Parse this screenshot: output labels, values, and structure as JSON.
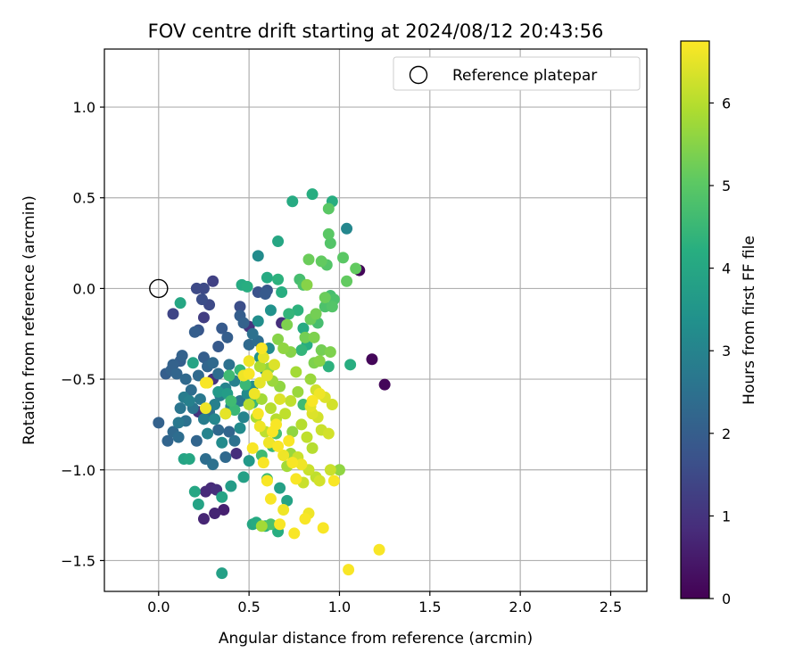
{
  "chart_data": {
    "type": "scatter",
    "title": "FOV centre drift starting at 2024/08/12 20:43:56",
    "xlabel": "Angular distance from reference (arcmin)",
    "ylabel": "Rotation from reference (arcmin)",
    "xlim": [
      -0.3,
      2.7
    ],
    "ylim": [
      -1.67,
      1.32
    ],
    "xticks": [
      0.0,
      0.5,
      1.0,
      1.5,
      2.0,
      2.5
    ],
    "xtick_labels": [
      "0.0",
      "0.5",
      "1.0",
      "1.5",
      "2.0",
      "2.5"
    ],
    "yticks": [
      -1.5,
      -1.0,
      -0.5,
      0.0,
      0.5,
      1.0
    ],
    "ytick_labels": [
      "−1.5",
      "−1.0",
      "−0.5",
      "0.0",
      "0.5",
      "1.0"
    ],
    "grid": true,
    "colormap": "viridis",
    "colorbar": {
      "label": "Hours from first FF file",
      "range": [
        0,
        6.75
      ],
      "ticks": [
        0,
        1,
        2,
        3,
        4,
        5,
        6
      ],
      "tick_labels": [
        "0",
        "1",
        "2",
        "3",
        "4",
        "5",
        "6"
      ]
    },
    "legend": {
      "position": "top-right",
      "entries": [
        "Reference platepar"
      ]
    },
    "reference_point": {
      "x": 0.0,
      "y": 0.0
    },
    "points": [
      {
        "x": 1.25,
        "y": -0.53,
        "h": 0.1
      },
      {
        "x": 1.18,
        "y": -0.39,
        "h": 0.1
      },
      {
        "x": 1.11,
        "y": 0.1,
        "h": 0.1
      },
      {
        "x": 0.36,
        "y": -1.22,
        "h": 0.6
      },
      {
        "x": 0.25,
        "y": -1.27,
        "h": 0.7
      },
      {
        "x": 0.31,
        "y": -1.24,
        "h": 0.7
      },
      {
        "x": 0.26,
        "y": -1.12,
        "h": 0.8
      },
      {
        "x": 0.29,
        "y": -1.1,
        "h": 0.8
      },
      {
        "x": 0.32,
        "y": -1.11,
        "h": 0.9
      },
      {
        "x": 0.43,
        "y": -0.91,
        "h": 0.9
      },
      {
        "x": 0.22,
        "y": -0.68,
        "h": 1.0
      },
      {
        "x": 0.3,
        "y": -0.5,
        "h": 1.0
      },
      {
        "x": 0.68,
        "y": -0.19,
        "h": 0.9
      },
      {
        "x": 0.5,
        "y": -0.21,
        "h": 1.0
      },
      {
        "x": 0.25,
        "y": -0.16,
        "h": 1.2
      },
      {
        "x": 0.3,
        "y": 0.04,
        "h": 1.3
      },
      {
        "x": 0.08,
        "y": -0.14,
        "h": 1.4
      },
      {
        "x": 0.21,
        "y": 0.0,
        "h": 1.5
      },
      {
        "x": 0.25,
        "y": 0.0,
        "h": 1.5
      },
      {
        "x": 0.24,
        "y": -0.06,
        "h": 1.6
      },
      {
        "x": 0.28,
        "y": -0.09,
        "h": 1.5
      },
      {
        "x": 0.45,
        "y": -0.1,
        "h": 1.6
      },
      {
        "x": 0.55,
        "y": -0.02,
        "h": 1.7
      },
      {
        "x": 0.6,
        "y": -0.01,
        "h": 1.8
      },
      {
        "x": 0.59,
        "y": -0.03,
        "h": 1.9
      },
      {
        "x": 0.22,
        "y": -0.23,
        "h": 1.8
      },
      {
        "x": 0.35,
        "y": -0.22,
        "h": 1.9
      },
      {
        "x": 0.38,
        "y": -0.27,
        "h": 2.0
      },
      {
        "x": 0.45,
        "y": -0.15,
        "h": 2.0
      },
      {
        "x": 0.47,
        "y": -0.19,
        "h": 2.1
      },
      {
        "x": 0.33,
        "y": -0.32,
        "h": 1.9
      },
      {
        "x": 0.2,
        "y": -0.24,
        "h": 2.0
      },
      {
        "x": 0.25,
        "y": -0.38,
        "h": 2.0
      },
      {
        "x": 0.13,
        "y": -0.37,
        "h": 2.1
      },
      {
        "x": 0.12,
        "y": -0.4,
        "h": 2.0
      },
      {
        "x": 0.08,
        "y": -0.42,
        "h": 2.1
      },
      {
        "x": 0.04,
        "y": -0.47,
        "h": 2.0
      },
      {
        "x": 0.07,
        "y": -0.45,
        "h": 2.1
      },
      {
        "x": 0.1,
        "y": -0.47,
        "h": 2.2
      },
      {
        "x": 0.15,
        "y": -0.5,
        "h": 2.3
      },
      {
        "x": 0.27,
        "y": -0.43,
        "h": 2.2
      },
      {
        "x": 0.3,
        "y": -0.41,
        "h": 2.3
      },
      {
        "x": 0.18,
        "y": -0.56,
        "h": 2.4
      },
      {
        "x": 0.22,
        "y": -0.48,
        "h": 2.3
      },
      {
        "x": 0.33,
        "y": -0.47,
        "h": 2.4
      },
      {
        "x": 0.39,
        "y": -0.42,
        "h": 2.5
      },
      {
        "x": 0.5,
        "y": -0.31,
        "h": 2.3
      },
      {
        "x": 0.55,
        "y": -0.29,
        "h": 2.4
      },
      {
        "x": 0.52,
        "y": -0.25,
        "h": 2.5
      },
      {
        "x": 0.0,
        "y": -0.74,
        "h": 2.1
      },
      {
        "x": 0.05,
        "y": -0.84,
        "h": 2.2
      },
      {
        "x": 0.08,
        "y": -0.79,
        "h": 2.3
      },
      {
        "x": 0.11,
        "y": -0.82,
        "h": 2.4
      },
      {
        "x": 0.21,
        "y": -0.84,
        "h": 2.2
      },
      {
        "x": 0.26,
        "y": -0.94,
        "h": 2.4
      },
      {
        "x": 0.3,
        "y": -0.97,
        "h": 2.5
      },
      {
        "x": 0.37,
        "y": -0.93,
        "h": 2.3
      },
      {
        "x": 0.42,
        "y": -0.84,
        "h": 2.5
      },
      {
        "x": 0.39,
        "y": -0.79,
        "h": 2.2
      },
      {
        "x": 0.33,
        "y": -0.78,
        "h": 2.3
      },
      {
        "x": 0.28,
        "y": -0.68,
        "h": 2.4
      },
      {
        "x": 0.12,
        "y": -0.66,
        "h": 2.6
      },
      {
        "x": 0.11,
        "y": -0.74,
        "h": 2.7
      },
      {
        "x": 0.15,
        "y": -0.73,
        "h": 2.5
      },
      {
        "x": 0.14,
        "y": -0.6,
        "h": 2.8
      },
      {
        "x": 0.17,
        "y": -0.62,
        "h": 2.9
      },
      {
        "x": 0.19,
        "y": -0.66,
        "h": 2.6
      },
      {
        "x": 0.23,
        "y": -0.61,
        "h": 2.7
      },
      {
        "x": 0.25,
        "y": -0.72,
        "h": 2.8
      },
      {
        "x": 0.31,
        "y": -0.64,
        "h": 2.9
      },
      {
        "x": 0.34,
        "y": -0.59,
        "h": 2.8
      },
      {
        "x": 0.37,
        "y": -0.55,
        "h": 3.0
      },
      {
        "x": 0.42,
        "y": -0.51,
        "h": 2.9
      },
      {
        "x": 0.45,
        "y": -0.62,
        "h": 2.7
      },
      {
        "x": 0.47,
        "y": -0.71,
        "h": 3.0
      },
      {
        "x": 0.4,
        "y": -0.65,
        "h": 3.1
      },
      {
        "x": 0.31,
        "y": -0.72,
        "h": 3.1
      },
      {
        "x": 0.27,
        "y": -0.8,
        "h": 3.0
      },
      {
        "x": 0.35,
        "y": -0.85,
        "h": 3.2
      },
      {
        "x": 0.45,
        "y": -0.77,
        "h": 3.2
      },
      {
        "x": 0.49,
        "y": -0.58,
        "h": 3.2
      },
      {
        "x": 0.52,
        "y": -0.54,
        "h": 3.3
      },
      {
        "x": 0.55,
        "y": -0.18,
        "h": 3.3
      },
      {
        "x": 0.62,
        "y": -0.12,
        "h": 3.4
      },
      {
        "x": 0.61,
        "y": -0.33,
        "h": 3.2
      },
      {
        "x": 0.56,
        "y": -0.38,
        "h": 3.4
      },
      {
        "x": 0.59,
        "y": -0.45,
        "h": 3.3
      },
      {
        "x": 0.55,
        "y": 0.18,
        "h": 3.2
      },
      {
        "x": 1.04,
        "y": 0.33,
        "h": 3.1
      },
      {
        "x": 0.33,
        "y": -0.57,
        "h": 3.6
      },
      {
        "x": 0.38,
        "y": -0.58,
        "h": 3.7
      },
      {
        "x": 0.35,
        "y": -1.57,
        "h": 3.8
      },
      {
        "x": 0.4,
        "y": -1.09,
        "h": 3.7
      },
      {
        "x": 0.47,
        "y": -1.04,
        "h": 3.8
      },
      {
        "x": 0.35,
        "y": -1.15,
        "h": 3.9
      },
      {
        "x": 0.22,
        "y": -1.19,
        "h": 3.9
      },
      {
        "x": 0.2,
        "y": -1.12,
        "h": 4.0
      },
      {
        "x": 0.14,
        "y": -0.94,
        "h": 3.9
      },
      {
        "x": 0.17,
        "y": -0.94,
        "h": 4.0
      },
      {
        "x": 0.5,
        "y": -0.95,
        "h": 3.6
      },
      {
        "x": 0.52,
        "y": -1.3,
        "h": 4.0
      },
      {
        "x": 0.54,
        "y": -1.29,
        "h": 4.1
      },
      {
        "x": 0.67,
        "y": -1.1,
        "h": 3.8
      },
      {
        "x": 0.71,
        "y": -1.17,
        "h": 3.9
      },
      {
        "x": 0.66,
        "y": -1.34,
        "h": 4.2
      },
      {
        "x": 0.59,
        "y": -1.31,
        "h": 4.3
      },
      {
        "x": 0.12,
        "y": -0.08,
        "h": 4.0
      },
      {
        "x": 0.19,
        "y": -0.41,
        "h": 3.9
      },
      {
        "x": 0.46,
        "y": 0.02,
        "h": 4.1
      },
      {
        "x": 0.49,
        "y": 0.01,
        "h": 4.2
      },
      {
        "x": 0.6,
        "y": 0.06,
        "h": 4.1
      },
      {
        "x": 0.66,
        "y": 0.26,
        "h": 4.0
      },
      {
        "x": 0.74,
        "y": 0.48,
        "h": 4.1
      },
      {
        "x": 0.85,
        "y": 0.52,
        "h": 4.2
      },
      {
        "x": 0.96,
        "y": 0.48,
        "h": 4.2
      },
      {
        "x": 0.66,
        "y": 0.05,
        "h": 4.3
      },
      {
        "x": 0.68,
        "y": -0.02,
        "h": 4.2
      },
      {
        "x": 0.72,
        "y": -0.14,
        "h": 4.4
      },
      {
        "x": 0.77,
        "y": -0.12,
        "h": 4.3
      },
      {
        "x": 0.8,
        "y": -0.22,
        "h": 4.1
      },
      {
        "x": 0.82,
        "y": -0.31,
        "h": 4.2
      },
      {
        "x": 0.79,
        "y": -0.34,
        "h": 4.4
      },
      {
        "x": 1.06,
        "y": -0.42,
        "h": 4.2
      },
      {
        "x": 0.94,
        "y": -0.43,
        "h": 4.3
      },
      {
        "x": 0.45,
        "y": -0.45,
        "h": 4.4
      },
      {
        "x": 0.48,
        "y": -0.53,
        "h": 4.5
      },
      {
        "x": 0.52,
        "y": -0.63,
        "h": 4.5
      },
      {
        "x": 0.39,
        "y": -0.48,
        "h": 4.6
      },
      {
        "x": 0.4,
        "y": -0.62,
        "h": 4.6
      },
      {
        "x": 0.42,
        "y": -0.67,
        "h": 4.5
      },
      {
        "x": 0.37,
        "y": -0.69,
        "h": 4.4
      },
      {
        "x": 0.63,
        "y": -0.87,
        "h": 4.5
      },
      {
        "x": 0.6,
        "y": -1.05,
        "h": 4.6
      },
      {
        "x": 0.57,
        "y": -0.92,
        "h": 4.6
      },
      {
        "x": 0.65,
        "y": -0.8,
        "h": 4.7
      },
      {
        "x": 0.8,
        "y": -0.64,
        "h": 4.6
      },
      {
        "x": 0.62,
        "y": -1.3,
        "h": 4.8
      },
      {
        "x": 0.78,
        "y": 0.05,
        "h": 4.7
      },
      {
        "x": 0.8,
        "y": 0.02,
        "h": 4.8
      },
      {
        "x": 0.88,
        "y": -0.19,
        "h": 4.7
      },
      {
        "x": 0.92,
        "y": -0.1,
        "h": 4.8
      },
      {
        "x": 0.95,
        "y": -0.04,
        "h": 4.7
      },
      {
        "x": 0.96,
        "y": -0.1,
        "h": 4.9
      },
      {
        "x": 0.97,
        "y": -0.06,
        "h": 4.8
      },
      {
        "x": 0.93,
        "y": 0.13,
        "h": 4.9
      },
      {
        "x": 0.95,
        "y": 0.25,
        "h": 4.9
      },
      {
        "x": 0.94,
        "y": 0.3,
        "h": 5.0
      },
      {
        "x": 0.94,
        "y": 0.44,
        "h": 5.0
      },
      {
        "x": 1.02,
        "y": 0.17,
        "h": 5.0
      },
      {
        "x": 1.09,
        "y": 0.11,
        "h": 5.1
      },
      {
        "x": 1.04,
        "y": 0.04,
        "h": 5.1
      },
      {
        "x": 0.9,
        "y": 0.15,
        "h": 5.1
      },
      {
        "x": 0.83,
        "y": 0.16,
        "h": 5.2
      },
      {
        "x": 0.92,
        "y": -0.05,
        "h": 5.2
      },
      {
        "x": 0.87,
        "y": -0.14,
        "h": 5.3
      },
      {
        "x": 0.84,
        "y": -0.17,
        "h": 5.2
      },
      {
        "x": 0.81,
        "y": -0.27,
        "h": 5.3
      },
      {
        "x": 0.86,
        "y": -0.27,
        "h": 5.4
      },
      {
        "x": 0.9,
        "y": -0.34,
        "h": 5.3
      },
      {
        "x": 0.86,
        "y": -0.41,
        "h": 5.4
      },
      {
        "x": 0.89,
        "y": -0.4,
        "h": 5.5
      },
      {
        "x": 0.95,
        "y": -0.35,
        "h": 5.4
      },
      {
        "x": 0.82,
        "y": 0.02,
        "h": 5.5
      },
      {
        "x": 0.71,
        "y": -0.2,
        "h": 5.4
      },
      {
        "x": 0.66,
        "y": -0.28,
        "h": 5.5
      },
      {
        "x": 0.69,
        "y": -0.33,
        "h": 5.6
      },
      {
        "x": 0.73,
        "y": -0.35,
        "h": 5.5
      },
      {
        "x": 0.61,
        "y": -0.44,
        "h": 5.6
      },
      {
        "x": 0.63,
        "y": -0.51,
        "h": 5.7
      },
      {
        "x": 0.67,
        "y": -0.54,
        "h": 5.6
      },
      {
        "x": 0.77,
        "y": -0.57,
        "h": 5.7
      },
      {
        "x": 0.74,
        "y": -0.79,
        "h": 5.6
      },
      {
        "x": 0.71,
        "y": -0.98,
        "h": 5.8
      },
      {
        "x": 0.73,
        "y": -0.91,
        "h": 5.7
      },
      {
        "x": 1.0,
        "y": -1.0,
        "h": 5.6
      },
      {
        "x": 0.57,
        "y": -1.31,
        "h": 5.8
      },
      {
        "x": 0.84,
        "y": -0.5,
        "h": 5.7
      },
      {
        "x": 0.76,
        "y": -0.46,
        "h": 5.8
      },
      {
        "x": 0.57,
        "y": -0.61,
        "h": 5.8
      },
      {
        "x": 0.56,
        "y": -0.43,
        "h": 5.9
      },
      {
        "x": 0.54,
        "y": -0.71,
        "h": 5.9
      },
      {
        "x": 0.5,
        "y": -0.64,
        "h": 6.0
      },
      {
        "x": 0.62,
        "y": -0.66,
        "h": 6.0
      },
      {
        "x": 0.65,
        "y": -0.72,
        "h": 6.0
      },
      {
        "x": 0.59,
        "y": -0.79,
        "h": 6.1
      },
      {
        "x": 0.7,
        "y": -0.69,
        "h": 6.1
      },
      {
        "x": 0.73,
        "y": -0.62,
        "h": 6.1
      },
      {
        "x": 0.79,
        "y": -0.75,
        "h": 6.0
      },
      {
        "x": 0.82,
        "y": -0.82,
        "h": 6.1
      },
      {
        "x": 0.85,
        "y": -0.88,
        "h": 6.0
      },
      {
        "x": 0.77,
        "y": -0.93,
        "h": 6.2
      },
      {
        "x": 0.83,
        "y": -1.0,
        "h": 6.2
      },
      {
        "x": 0.87,
        "y": -1.04,
        "h": 6.1
      },
      {
        "x": 0.8,
        "y": -1.07,
        "h": 6.2
      },
      {
        "x": 0.89,
        "y": -1.06,
        "h": 6.3
      },
      {
        "x": 0.95,
        "y": -1.0,
        "h": 6.2
      },
      {
        "x": 0.94,
        "y": -0.8,
        "h": 6.3
      },
      {
        "x": 0.9,
        "y": -0.78,
        "h": 6.2
      },
      {
        "x": 0.96,
        "y": -0.64,
        "h": 6.3
      },
      {
        "x": 0.87,
        "y": -0.56,
        "h": 6.3
      },
      {
        "x": 0.92,
        "y": -0.6,
        "h": 6.4
      },
      {
        "x": 0.85,
        "y": -0.69,
        "h": 6.4
      },
      {
        "x": 0.88,
        "y": -0.71,
        "h": 6.3
      },
      {
        "x": 0.84,
        "y": -0.65,
        "h": 6.5
      },
      {
        "x": 0.67,
        "y": -0.61,
        "h": 6.4
      },
      {
        "x": 0.64,
        "y": -0.42,
        "h": 6.4
      },
      {
        "x": 0.58,
        "y": -0.38,
        "h": 6.5
      },
      {
        "x": 0.6,
        "y": -0.48,
        "h": 6.5
      },
      {
        "x": 0.56,
        "y": -0.52,
        "h": 6.5
      },
      {
        "x": 0.53,
        "y": -0.58,
        "h": 6.6
      },
      {
        "x": 0.5,
        "y": -0.4,
        "h": 6.6
      },
      {
        "x": 0.47,
        "y": -0.48,
        "h": 6.6
      },
      {
        "x": 0.27,
        "y": -0.52,
        "h": 6.6
      },
      {
        "x": 0.26,
        "y": -0.66,
        "h": 6.6
      },
      {
        "x": 0.37,
        "y": -0.69,
        "h": 6.5
      },
      {
        "x": 0.61,
        "y": -0.85,
        "h": 6.6
      },
      {
        "x": 0.63,
        "y": -0.79,
        "h": 6.7
      },
      {
        "x": 0.66,
        "y": -0.87,
        "h": 6.7
      },
      {
        "x": 0.69,
        "y": -0.92,
        "h": 6.6
      },
      {
        "x": 0.72,
        "y": -0.84,
        "h": 6.7
      },
      {
        "x": 0.74,
        "y": -0.96,
        "h": 6.7
      },
      {
        "x": 0.76,
        "y": -1.05,
        "h": 6.7
      },
      {
        "x": 0.79,
        "y": -0.97,
        "h": 6.6
      },
      {
        "x": 0.62,
        "y": -1.16,
        "h": 6.7
      },
      {
        "x": 0.69,
        "y": -1.22,
        "h": 6.6
      },
      {
        "x": 0.75,
        "y": -1.35,
        "h": 6.7
      },
      {
        "x": 0.81,
        "y": -1.27,
        "h": 6.7
      },
      {
        "x": 0.83,
        "y": -1.24,
        "h": 6.6
      },
      {
        "x": 0.91,
        "y": -1.32,
        "h": 6.7
      },
      {
        "x": 0.67,
        "y": -1.3,
        "h": 6.7
      },
      {
        "x": 1.05,
        "y": -1.55,
        "h": 6.7
      },
      {
        "x": 1.22,
        "y": -1.44,
        "h": 6.7
      },
      {
        "x": 0.97,
        "y": -1.06,
        "h": 6.7
      },
      {
        "x": 0.85,
        "y": -0.62,
        "h": 6.7
      },
      {
        "x": 0.89,
        "y": -0.58,
        "h": 6.6
      },
      {
        "x": 0.57,
        "y": -0.33,
        "h": 6.7
      },
      {
        "x": 0.5,
        "y": -0.47,
        "h": 6.7
      },
      {
        "x": 0.52,
        "y": -0.88,
        "h": 6.7
      },
      {
        "x": 0.56,
        "y": -0.76,
        "h": 6.6
      },
      {
        "x": 0.58,
        "y": -0.96,
        "h": 6.7
      },
      {
        "x": 0.6,
        "y": -1.06,
        "h": 6.7
      },
      {
        "x": 0.26,
        "y": -0.52,
        "h": 6.7
      },
      {
        "x": 0.55,
        "y": -0.69,
        "h": 6.7
      },
      {
        "x": 0.65,
        "y": -0.75,
        "h": 6.7
      }
    ]
  }
}
